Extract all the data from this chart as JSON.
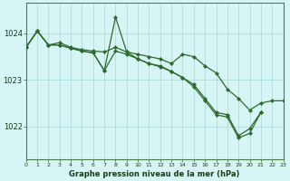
{
  "background_color": "#d8f5f5",
  "line_color": "#2d6a2d",
  "grid_color": "#a8d8d8",
  "ylabel_ticks": [
    1022,
    1023,
    1024
  ],
  "xlabel_label": "Graphe pression niveau de la mer (hPa)",
  "x_min": 0,
  "x_max": 23,
  "y_min": 1021.3,
  "y_max": 1024.65,
  "curves": [
    {
      "x": [
        0,
        1,
        2,
        3,
        4,
        5,
        6,
        7,
        8,
        9,
        10,
        11,
        12,
        13,
        14,
        15,
        16,
        17,
        18,
        19,
        20,
        21,
        22,
        23
      ],
      "y": [
        1023.7,
        1024.05,
        1023.75,
        1023.8,
        1023.7,
        1023.65,
        1023.62,
        1023.6,
        1023.7,
        1023.6,
        1023.55,
        1023.5,
        1023.45,
        1023.35,
        1023.55,
        1023.5,
        1023.3,
        1023.15,
        1022.8,
        1022.6,
        1022.35,
        1022.5,
        1022.55,
        1022.55
      ]
    },
    {
      "x": [
        0,
        1,
        2,
        3,
        4,
        5,
        6,
        7,
        8,
        9,
        10,
        11,
        12,
        13,
        14,
        15,
        16,
        17,
        18,
        19,
        20,
        21
      ],
      "y": [
        1023.7,
        1024.05,
        1023.75,
        1023.75,
        1023.68,
        1023.62,
        1023.58,
        1023.2,
        1023.62,
        1023.55,
        1023.45,
        1023.35,
        1023.3,
        1023.18,
        1023.05,
        1022.9,
        1022.6,
        1022.3,
        1022.25,
        1021.8,
        1021.95,
        1022.3
      ]
    },
    {
      "x": [
        0,
        1,
        2,
        3,
        4,
        5,
        6,
        7,
        8,
        9,
        10,
        11,
        12,
        13,
        14,
        15,
        16,
        17,
        18,
        19,
        20,
        21
      ],
      "y": [
        1023.7,
        1024.05,
        1023.75,
        1023.75,
        1023.68,
        1023.62,
        1023.58,
        1023.2,
        1024.35,
        1023.6,
        1023.45,
        1023.35,
        1023.28,
        1023.18,
        1023.05,
        1022.85,
        1022.55,
        1022.25,
        1022.2,
        1021.75,
        1021.85,
        1022.3
      ]
    }
  ]
}
